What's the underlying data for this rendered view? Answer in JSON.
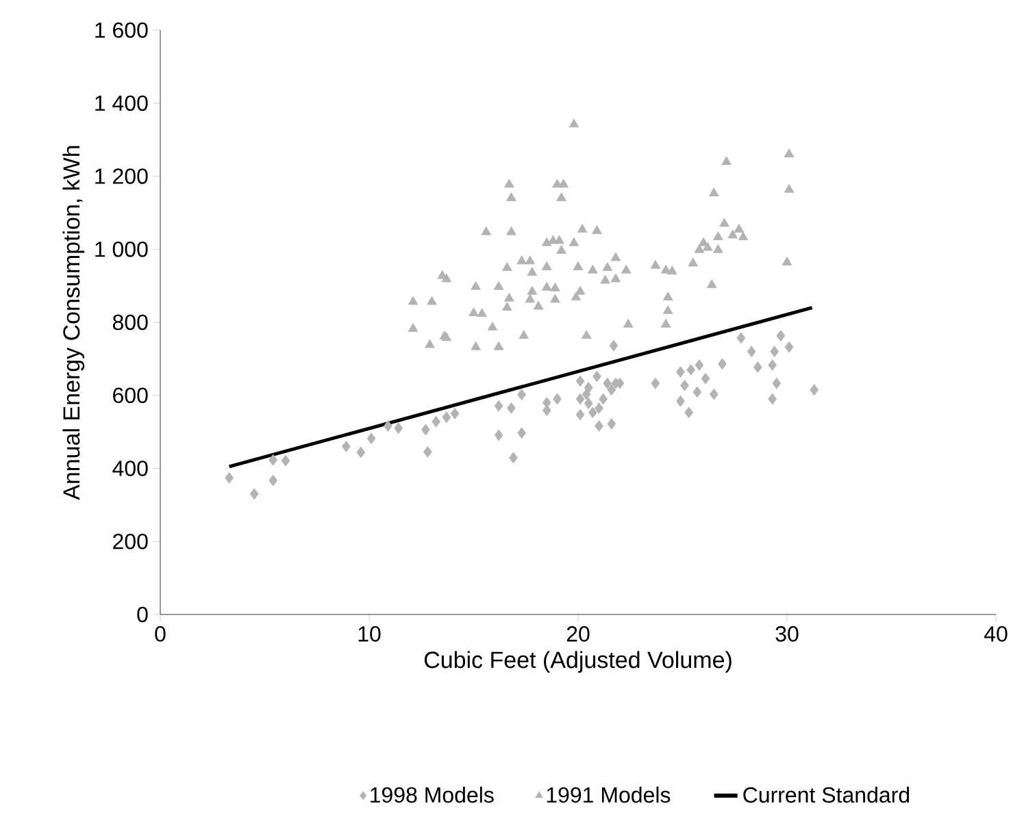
{
  "chart_data": {
    "type": "scatter",
    "xlabel": "Cubic Feet (Adjusted Volume)",
    "ylabel": "Annual Energy Consumption, kWh",
    "xlim": [
      0,
      40
    ],
    "xticks": [
      0,
      10,
      20,
      30,
      40
    ],
    "ylim": [
      0,
      1600
    ],
    "yticks": [
      0,
      200,
      400,
      600,
      800,
      {
        "value": 1000,
        "label": "1 000"
      },
      {
        "value": 1200,
        "label": "1 200"
      },
      {
        "value": 1400,
        "label": "1 400"
      },
      {
        "value": 1600,
        "label": "1 600"
      }
    ],
    "legend": "bottom",
    "grid": false,
    "series": [
      {
        "name": "1998 Models",
        "marker": "diamond",
        "color": "#b3b3b3",
        "x": [
          3.3,
          4.5,
          5.4,
          5.4,
          6.0,
          8.9,
          9.6,
          10.1,
          10.9,
          11.4,
          12.7,
          12.8,
          13.2,
          13.7,
          14.1,
          21.7,
          16.2,
          16.8,
          17.3,
          16.2,
          17.3,
          16.9,
          18.5,
          19.0,
          18.5,
          20.1,
          20.5,
          20.9,
          21.4,
          21.8,
          20.1,
          20.5,
          21.2,
          21.6,
          20.1,
          20.7,
          21.0,
          21.6,
          20.4,
          21.0,
          22.0,
          23.7,
          24.9,
          25.4,
          25.8,
          26.1,
          25.1,
          25.7,
          26.5,
          24.9,
          25.3,
          26.9,
          28.3,
          28.6,
          29.4,
          29.3,
          30.1,
          29.5,
          29.3,
          31.3,
          29.7,
          27.8
        ],
        "values": [
          374,
          330,
          367,
          423,
          421,
          460,
          444,
          482,
          516,
          510,
          506,
          445,
          528,
          540,
          550,
          736,
          571,
          565,
          602,
          491,
          497,
          429,
          559,
          590,
          580,
          639,
          621,
          652,
          633,
          633,
          590,
          578,
          590,
          615,
          547,
          553,
          516,
          522,
          603,
          565,
          633,
          633,
          664,
          670,
          683,
          646,
          627,
          609,
          603,
          584,
          553,
          686,
          720,
          677,
          720,
          683,
          732,
          633,
          590,
          615,
          763,
          757
        ]
      },
      {
        "name": "1991 Models",
        "marker": "triangle",
        "color": "#b3b3b3",
        "x": [
          13.5,
          12.1,
          13.0,
          12.1,
          12.9,
          13.6,
          19.8,
          16.7,
          16.8,
          19.0,
          19.3,
          19.2,
          15.6,
          16.8,
          20.2,
          20.9,
          18.5,
          18.8,
          19.1,
          19.8,
          19.2,
          16.6,
          17.3,
          17.7,
          17.8,
          18.5,
          20.0,
          20.7,
          21.4,
          21.8,
          21.8,
          21.3,
          22.3,
          15.1,
          16.2,
          16.7,
          17.8,
          18.5,
          18.9,
          20.1,
          19.9,
          16.6,
          18.1,
          18.9,
          17.7,
          15.0,
          15.4,
          15.9,
          15.1,
          16.2,
          17.4,
          20.4,
          13.7,
          13.7,
          22.4,
          27.1,
          30.1,
          30.1,
          26.5,
          27.0,
          27.7,
          27.4,
          26.7,
          26.0,
          26.2,
          25.8,
          26.7,
          27.9,
          25.5,
          26.4,
          30.0,
          23.7,
          24.2,
          24.5,
          24.3,
          24.3,
          24.2
        ],
        "values": [
          927,
          856,
          856,
          782,
          738,
          761,
          1342,
          1177,
          1140,
          1177,
          1177,
          1140,
          1047,
          1047,
          1054,
          1050,
          1017,
          1023,
          1023,
          1017,
          996,
          949,
          967,
          967,
          936,
          951,
          951,
          942,
          949,
          976,
          918,
          914,
          942,
          897,
          897,
          865,
          884,
          895,
          893,
          884,
          868,
          840,
          843,
          862,
          862,
          825,
          823,
          786,
          732,
          732,
          763,
          763,
          918,
          757,
          794,
          1239,
          1260,
          1163,
          1153,
          1070,
          1054,
          1038,
          1033,
          1017,
          1004,
          998,
          998,
          1033,
          961,
          902,
          964,
          955,
          942,
          939,
          868,
          831,
          794
        ]
      },
      {
        "name": "Current Standard",
        "type": "line",
        "marker": "none",
        "line_style": "solid",
        "color": "#000000",
        "x": [
          3.3,
          31.2
        ],
        "values": [
          405,
          840
        ]
      }
    ]
  }
}
